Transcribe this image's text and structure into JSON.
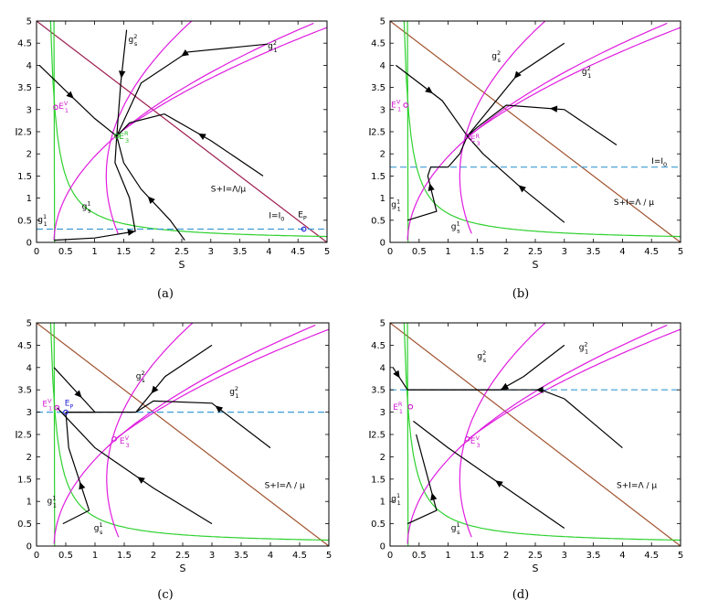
{
  "colors": {
    "line_S_plus_I": "#a0522d",
    "line_S_plus_I_a": "#9c1b4e",
    "nullcline_g1": "#e01ce0",
    "nullcline_gs": "#2ed12e",
    "threshold": "#3b9bd4",
    "trajectory": "#000000",
    "equilibrium_label_magenta": "#d21ad2",
    "equilibrium_label_green": "#22b522",
    "equilibrium_label_blue": "#1c1cd4"
  },
  "chart_data": [
    {
      "panel": "(a)",
      "type": "line",
      "xlabel": "S",
      "ylabel": "I",
      "xlim": [
        0,
        5
      ],
      "ylim": [
        0,
        5
      ],
      "xticks": [
        "0",
        "0.5",
        "1",
        "1.5",
        "2",
        "2.5",
        "3",
        "3.5",
        "4",
        "4.5",
        "5"
      ],
      "yticks": [
        "0",
        "0.5",
        "1",
        "1.5",
        "2",
        "2.5",
        "3",
        "3.5",
        "4",
        "4.5",
        "5"
      ],
      "threshold_label": "I=I",
      "threshold_sub": "0",
      "threshold_I": 0.3,
      "line_label": "S+I=Λ/μ",
      "line_color_key": "line_S_plus_I_a",
      "labels": [
        {
          "base": "g",
          "sup": "2",
          "sub": "s",
          "x": 1.58,
          "y": 4.52,
          "color": "#000000"
        },
        {
          "base": "g",
          "sup": "2",
          "sub": "1",
          "x": 3.98,
          "y": 4.38,
          "color": "#000000"
        },
        {
          "base": "g",
          "sup": "1",
          "sub": "s",
          "x": 0.78,
          "y": 0.75,
          "color": "#000000"
        },
        {
          "base": "g",
          "sup": "1",
          "sub": "1",
          "x": 0.02,
          "y": 0.45,
          "color": "#000000"
        },
        {
          "base": "E",
          "sup": "V",
          "sub": "1",
          "x": 0.38,
          "y": 3.02,
          "color": "#d21ad2"
        },
        {
          "base": "E",
          "sup": "R",
          "sub": "3",
          "x": 1.42,
          "y": 2.33,
          "color": "#22b522"
        },
        {
          "base": "E",
          "sup": "",
          "sub": "P",
          "x": 4.5,
          "y": 0.57,
          "color": "#000000"
        }
      ],
      "points": [
        {
          "name": "E1V",
          "S": 0.33,
          "I": 3.05,
          "color": "#d21ad2"
        },
        {
          "name": "E3R",
          "S": 1.38,
          "I": 2.4,
          "color": "#22b522"
        },
        {
          "name": "EP",
          "S": 4.6,
          "I": 0.3,
          "color": "#1c1cd4"
        }
      ],
      "annotations_xy": {
        "threshold": [
          4.0,
          0.55
        ],
        "line": [
          3.0,
          1.15
        ]
      },
      "caption": "(a)"
    },
    {
      "panel": "(b)",
      "type": "line",
      "xlabel": "S",
      "ylabel": "I",
      "xlim": [
        0,
        5
      ],
      "ylim": [
        0,
        5
      ],
      "xticks": [
        "0",
        "0.5",
        "1",
        "1.5",
        "2",
        "2.5",
        "3",
        "3.5",
        "4",
        "4.5",
        "5"
      ],
      "yticks": [
        "0",
        "0.5",
        "1",
        "1.5",
        "2",
        "2.5",
        "3",
        "3.5",
        "4",
        "4.5",
        "5"
      ],
      "threshold_label": "I=I",
      "threshold_sub": "0",
      "threshold_I": 1.7,
      "line_label": "S+I=Λ / μ",
      "line_color_key": "line_S_plus_I",
      "labels": [
        {
          "base": "g",
          "sup": "2",
          "sub": "s",
          "x": 1.75,
          "y": 4.15,
          "color": "#000000"
        },
        {
          "base": "g",
          "sup": "2",
          "sub": "1",
          "x": 3.3,
          "y": 3.8,
          "color": "#000000"
        },
        {
          "base": "g",
          "sup": "1",
          "sub": "s",
          "x": 1.05,
          "y": 0.3,
          "color": "#000000"
        },
        {
          "base": "g",
          "sup": "1",
          "sub": "1",
          "x": 0.02,
          "y": 0.8,
          "color": "#000000"
        },
        {
          "base": "E",
          "sup": "V",
          "sub": "1",
          "x": 0.02,
          "y": 3.05,
          "color": "#d21ad2"
        },
        {
          "base": "E",
          "sup": "R",
          "sub": "3",
          "x": 1.38,
          "y": 2.27,
          "color": "#d21ad2"
        }
      ],
      "points": [
        {
          "name": "E1V",
          "S": 0.27,
          "I": 3.1,
          "color": "#d21ad2"
        },
        {
          "name": "E3R",
          "S": 1.33,
          "I": 2.4,
          "color": "#d21ad2"
        }
      ],
      "annotations_xy": {
        "threshold": [
          4.5,
          1.78
        ],
        "line": [
          3.85,
          0.85
        ]
      },
      "caption": "(b)"
    },
    {
      "panel": "(c)",
      "type": "line",
      "xlabel": "S",
      "ylabel": "I",
      "xlim": [
        0,
        5
      ],
      "ylim": [
        0,
        5
      ],
      "xticks": [
        "0",
        "0.5",
        "1",
        "1.5",
        "2",
        "2.5",
        "3",
        "3.5",
        "4",
        "4.5",
        "5"
      ],
      "yticks": [
        "0",
        "0.5",
        "1",
        "1.5",
        "2",
        "2.5",
        "3",
        "3.5",
        "4",
        "4.5",
        "5"
      ],
      "threshold_I": 3.0,
      "line_label": "S+I=Λ / μ",
      "line_color_key": "line_S_plus_I",
      "labels": [
        {
          "base": "g",
          "sup": "2",
          "sub": "s",
          "x": 1.7,
          "y": 3.75,
          "color": "#000000"
        },
        {
          "base": "g",
          "sup": "2",
          "sub": "1",
          "x": 3.3,
          "y": 3.4,
          "color": "#000000"
        },
        {
          "base": "g",
          "sup": "1",
          "sub": "s",
          "x": 0.98,
          "y": 0.35,
          "color": "#000000"
        },
        {
          "base": "g",
          "sup": "1",
          "sub": "1",
          "x": 0.18,
          "y": 0.95,
          "color": "#000000"
        },
        {
          "base": "E",
          "sup": "V",
          "sub": "1",
          "x": 0.1,
          "y": 3.13,
          "color": "#d21ad2"
        },
        {
          "base": "E",
          "sup": "",
          "sub": "P",
          "x": 0.48,
          "y": 3.15,
          "color": "#1c1cd4"
        },
        {
          "base": "E",
          "sup": "V",
          "sub": "3",
          "x": 1.42,
          "y": 2.3,
          "color": "#d21ad2"
        }
      ],
      "points": [
        {
          "name": "E1V",
          "S": 0.35,
          "I": 3.1,
          "color": "#d21ad2"
        },
        {
          "name": "EP",
          "S": 0.5,
          "I": 3.0,
          "color": "#1c1cd4"
        },
        {
          "name": "E3V",
          "S": 1.33,
          "I": 2.4,
          "color": "#d21ad2"
        }
      ],
      "annotations_xy": {
        "line": [
          3.9,
          1.3
        ]
      },
      "caption": "(c)"
    },
    {
      "panel": "(d)",
      "type": "line",
      "xlabel": "S",
      "ylabel": "I",
      "xlim": [
        0,
        5
      ],
      "ylim": [
        0,
        5
      ],
      "xticks": [
        "0",
        "0.5",
        "1",
        "1.5",
        "2",
        "2.5",
        "3",
        "3.5",
        "4",
        "4.5",
        "5"
      ],
      "yticks": [
        "0",
        "0.5",
        "1",
        "1.5",
        "2",
        "2.5",
        "3",
        "3.5",
        "4",
        "4.5",
        "5"
      ],
      "threshold_I": 3.5,
      "line_label": "S+I=Λ / μ",
      "line_color_key": "line_S_plus_I",
      "labels": [
        {
          "base": "g",
          "sup": "2",
          "sub": "s",
          "x": 1.5,
          "y": 4.2,
          "color": "#000000"
        },
        {
          "base": "g",
          "sup": "2",
          "sub": "1",
          "x": 3.25,
          "y": 4.4,
          "color": "#000000"
        },
        {
          "base": "g",
          "sup": "1",
          "sub": "s",
          "x": 1.05,
          "y": 0.35,
          "color": "#000000"
        },
        {
          "base": "g",
          "sup": "1",
          "sub": "1",
          "x": 0.02,
          "y": 1.0,
          "color": "#000000"
        },
        {
          "base": "E",
          "sup": "R",
          "sub": "1",
          "x": 0.05,
          "y": 3.05,
          "color": "#d21ad2"
        },
        {
          "base": "E",
          "sup": "V",
          "sub": "3",
          "x": 1.38,
          "y": 2.3,
          "color": "#d21ad2"
        }
      ],
      "points": [
        {
          "name": "E1R",
          "S": 0.35,
          "I": 3.12,
          "color": "#d21ad2"
        },
        {
          "name": "E3V",
          "S": 1.33,
          "I": 2.4,
          "color": "#d21ad2"
        }
      ],
      "annotations_xy": {
        "line": [
          3.9,
          1.3
        ]
      },
      "caption": "(d)"
    }
  ]
}
